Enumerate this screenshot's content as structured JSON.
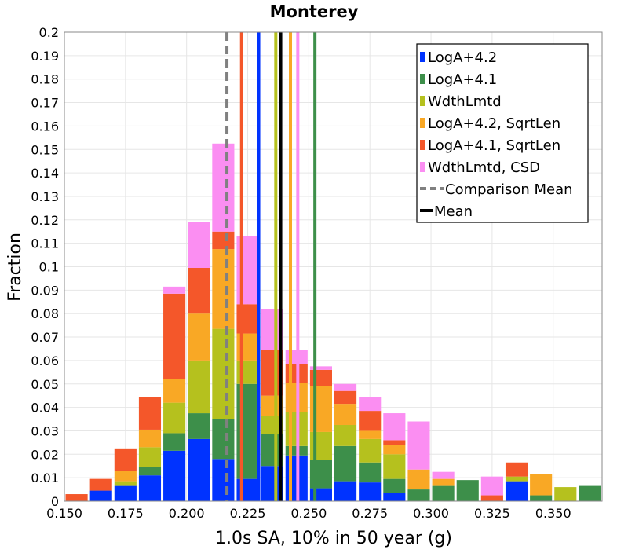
{
  "chart_data": {
    "type": "bar",
    "stacked": true,
    "title": "Monterey",
    "xlabel": "1.0s SA, 10% in 50 year (g)",
    "ylabel": "Fraction",
    "xlim": [
      0.15,
      0.37
    ],
    "ylim": [
      0,
      0.2
    ],
    "xticks": [
      "0.150",
      "0.175",
      "0.200",
      "0.225",
      "0.250",
      "0.275",
      "0.300",
      "0.325",
      "0.350"
    ],
    "yticks": [
      "0",
      "0.01",
      "0.02",
      "0.03",
      "0.04",
      "0.05",
      "0.06",
      "0.07",
      "0.08",
      "0.09",
      "0.1",
      "0.11",
      "0.12",
      "0.13",
      "0.14",
      "0.15",
      "0.16",
      "0.17",
      "0.18",
      "0.19",
      "0.2"
    ],
    "grid": true,
    "legend_position": "top-right",
    "bin_width": 0.01,
    "bin_starts": [
      0.15,
      0.16,
      0.17,
      0.18,
      0.19,
      0.2,
      0.21,
      0.22,
      0.23,
      0.24,
      0.25,
      0.26,
      0.27,
      0.28,
      0.29,
      0.3,
      0.31,
      0.32,
      0.33,
      0.34,
      0.35,
      0.36
    ],
    "series": [
      {
        "name": "LogA+4.2",
        "color": "#0033ff",
        "values": [
          0,
          0.0045,
          0.0065,
          0.011,
          0.0215,
          0.0265,
          0.018,
          0.0095,
          0.015,
          0.0195,
          0.0055,
          0.0085,
          0.008,
          0.0035,
          0,
          0,
          0,
          0,
          0.0085,
          0,
          0,
          0
        ]
      },
      {
        "name": "LogA+4.1",
        "color": "#3d8f4a",
        "values": [
          0,
          0,
          0,
          0.0035,
          0.0075,
          0.011,
          0.017,
          0.0405,
          0.0135,
          0.004,
          0.012,
          0.015,
          0.0085,
          0.006,
          0.005,
          0.0065,
          0.009,
          0,
          0,
          0.0025,
          0,
          0.0065
        ]
      },
      {
        "name": "WdthLmtd",
        "color": "#b5c11e",
        "values": [
          0,
          0,
          0.002,
          0.0085,
          0.013,
          0.0225,
          0.0385,
          0.01,
          0.008,
          0.0145,
          0.012,
          0.009,
          0.01,
          0.0105,
          0,
          0,
          0,
          0,
          0.002,
          0,
          0.006,
          0
        ]
      },
      {
        "name": "LogA+4.2, SqrtLen",
        "color": "#f9a825",
        "values": [
          0,
          0,
          0.0045,
          0.0075,
          0.01,
          0.02,
          0.034,
          0.0115,
          0.0085,
          0.0125,
          0.0195,
          0.009,
          0.0035,
          0.004,
          0.0085,
          0.003,
          0,
          0,
          0,
          0.009,
          0,
          0
        ]
      },
      {
        "name": "LogA+4.1, SqrtLen",
        "color": "#f4572a",
        "values": [
          0.003,
          0.005,
          0.0095,
          0.014,
          0.0365,
          0.0195,
          0.0075,
          0.0125,
          0.0195,
          0.008,
          0.007,
          0.0055,
          0.0085,
          0.002,
          0,
          0,
          0,
          0.0025,
          0.006,
          0,
          0,
          0
        ]
      },
      {
        "name": "WdthLmtd, CSD",
        "color": "#fb8ef2",
        "values": [
          0,
          0,
          0,
          0,
          0.003,
          0.0195,
          0.0375,
          0.029,
          0.0175,
          0.006,
          0.0015,
          0.003,
          0.006,
          0.0115,
          0.0205,
          0.003,
          0,
          0.008,
          0,
          0,
          0,
          0
        ]
      }
    ],
    "vertical_lines": [
      {
        "series": "Comparison Mean",
        "x": 0.2165,
        "color": "#808080",
        "style": "dashed"
      },
      {
        "series": "LogA+4.1, SqrtLen",
        "x": 0.2225,
        "color": "#f4572a",
        "style": "solid"
      },
      {
        "series": "LogA+4.2",
        "x": 0.2295,
        "color": "#0033ff",
        "style": "solid"
      },
      {
        "series": "WdthLmtd",
        "x": 0.2365,
        "color": "#b5c11e",
        "style": "solid"
      },
      {
        "series": "Mean",
        "x": 0.2385,
        "color": "#000000",
        "style": "solid"
      },
      {
        "series": "LogA+4.2, SqrtLen",
        "x": 0.2425,
        "color": "#f9a825",
        "style": "solid"
      },
      {
        "series": "WdthLmtd, CSD",
        "x": 0.2455,
        "color": "#fb8ef2",
        "style": "solid"
      },
      {
        "series": "LogA+4.1",
        "x": 0.2525,
        "color": "#3d8f4a",
        "style": "solid"
      }
    ],
    "legend": [
      {
        "label": "LogA+4.2",
        "color": "#0033ff",
        "kind": "swatch"
      },
      {
        "label": "LogA+4.1",
        "color": "#3d8f4a",
        "kind": "swatch"
      },
      {
        "label": "WdthLmtd",
        "color": "#b5c11e",
        "kind": "swatch"
      },
      {
        "label": "LogA+4.2, SqrtLen",
        "color": "#f9a825",
        "kind": "swatch"
      },
      {
        "label": "LogA+4.1, SqrtLen",
        "color": "#f4572a",
        "kind": "swatch"
      },
      {
        "label": "WdthLmtd, CSD",
        "color": "#fb8ef2",
        "kind": "swatch"
      },
      {
        "label": "Comparison Mean",
        "color": "#808080",
        "kind": "dashed-line"
      },
      {
        "label": "Mean",
        "color": "#000000",
        "kind": "line"
      }
    ]
  }
}
